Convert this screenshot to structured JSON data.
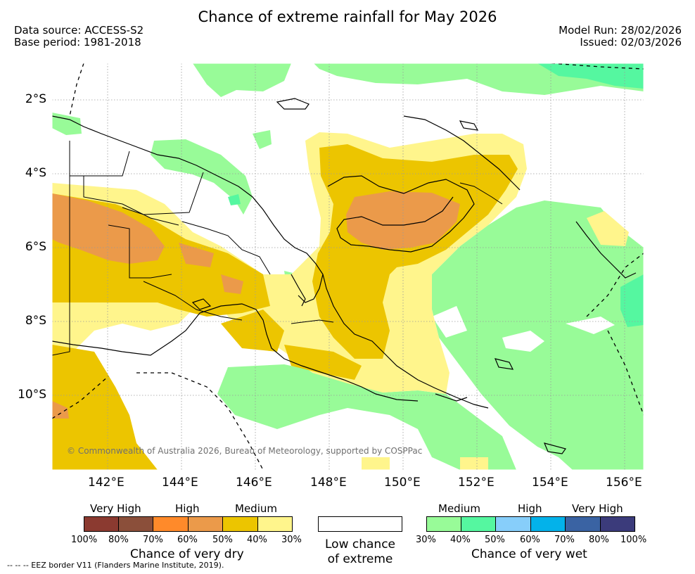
{
  "title": "Chance of extreme rainfall for May 2026",
  "data_source": "Data source: ACCESS-S2",
  "base_period": "Base period: 1981-2018",
  "model_run": "Model Run: 28/02/2026",
  "issued": "Issued: 02/03/2026",
  "copyright": "© Commonwealth of Australia 2026, Bureau of Meteorology, supported by COSPPac",
  "axes": {
    "lat_labels": [
      "2°S",
      "4°S",
      "6°S",
      "8°S",
      "10°S"
    ],
    "lon_labels": [
      "142°E",
      "144°E",
      "146°E",
      "148°E",
      "150°E",
      "152°E",
      "154°E",
      "156°E"
    ]
  },
  "legend": {
    "dry": {
      "levels": [
        "Very High",
        "High",
        "Medium"
      ],
      "ticks": [
        "100%",
        "80%",
        "70%",
        "60%",
        "50%",
        "40%",
        "30%"
      ],
      "colors": [
        "#8b3a30",
        "#8b4f3a",
        "#ff8a2a",
        "#eb9a4a",
        "#ecc500",
        "#fff58c"
      ],
      "title": "Chance of very dry"
    },
    "low": {
      "line1": "Low chance",
      "line2": "of extreme",
      "color": "#ffffff"
    },
    "wet": {
      "levels": [
        "Medium",
        "High",
        "Very High"
      ],
      "ticks": [
        "30%",
        "40%",
        "50%",
        "60%",
        "70%",
        "80%",
        "100%"
      ],
      "colors": [
        "#98fb98",
        "#55f7a0",
        "#87cefa",
        "#03b2ea",
        "#3a63a3",
        "#3b3b7b"
      ],
      "title": "Chance of very wet"
    }
  },
  "eez_note": "--  --  -- EEZ border V11 (Flanders Marine Institute, 2019)."
}
